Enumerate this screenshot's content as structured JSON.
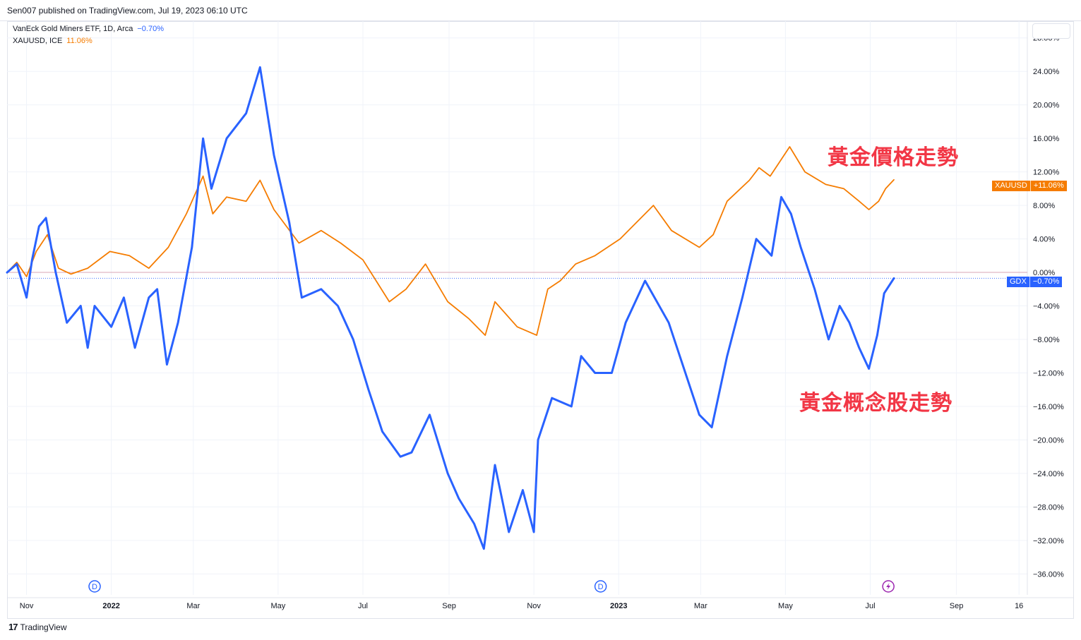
{
  "header": {
    "publisher": "Sen007",
    "published_text": "Sen007 published on TradingView.com, Jul 19, 2023 06:10 UTC"
  },
  "legend": [
    {
      "name": "VanEck Gold Miners ETF, 1D, Arca",
      "value": "−0.70%",
      "color": "#2962ff"
    },
    {
      "name": "XAUUSD, ICE",
      "value": "11.06%",
      "color": "#f57c00"
    }
  ],
  "annotations": {
    "gold_price": "黃金價格走勢",
    "gold_stocks": "黃金概念股走勢"
  },
  "price_tags": {
    "xauusd": {
      "symbol": "XAUUSD",
      "value": "+11.06%",
      "color": "#f57c00"
    },
    "gdx": {
      "symbol": "GDX",
      "value": "−0.70%",
      "color": "#2962ff"
    }
  },
  "footer": {
    "brand": "TradingView",
    "logo_icon": "tradingview-logo-icon"
  },
  "chart_data": {
    "type": "line",
    "title": "",
    "xlabel": "",
    "ylabel": "",
    "x_tick_labels": [
      "Nov",
      "2022",
      "Mar",
      "May",
      "Jul",
      "Sep",
      "Nov",
      "2023",
      "Mar",
      "May",
      "Jul",
      "Sep",
      "16"
    ],
    "x_tick_dates": [
      "2021-11-01",
      "2022-01-01",
      "2022-03-01",
      "2022-05-01",
      "2022-07-01",
      "2022-09-01",
      "2022-11-01",
      "2023-01-01",
      "2023-03-01",
      "2023-05-01",
      "2023-07-01",
      "2023-09-01",
      "2023-10-16"
    ],
    "y_tick_labels": [
      "28.00%",
      "24.00%",
      "20.00%",
      "16.00%",
      "12.00%",
      "8.00%",
      "4.00%",
      "0.00%",
      "−4.00%",
      "−8.00%",
      "−12.00%",
      "−16.00%",
      "−20.00%",
      "−24.00%",
      "−28.00%",
      "−32.00%",
      "−36.00%"
    ],
    "y_ticks": [
      28,
      24,
      20,
      16,
      12,
      8,
      4,
      0,
      -4,
      -8,
      -12,
      -16,
      -20,
      -24,
      -28,
      -32,
      -36
    ],
    "ylim": [
      -38.5,
      30
    ],
    "xlim": [
      "2021-10-18",
      "2023-10-22"
    ],
    "y_unit": "percent change",
    "dividend_markers": [
      {
        "date": "2021-12-20",
        "label": "D"
      },
      {
        "date": "2022-12-19",
        "label": "D"
      }
    ],
    "event_markers": [
      {
        "date": "2023-07-14",
        "icon": "lightning-icon"
      }
    ],
    "series": [
      {
        "name": "VanEck Gold Miners ETF, 1D, Arca",
        "color": "#2962ff",
        "last_value": -0.7,
        "points": [
          [
            "2021-10-18",
            0
          ],
          [
            "2021-10-25",
            1
          ],
          [
            "2021-11-01",
            -3
          ],
          [
            "2021-11-05",
            1.5
          ],
          [
            "2021-11-10",
            5.5
          ],
          [
            "2021-11-15",
            6.5
          ],
          [
            "2021-11-22",
            0
          ],
          [
            "2021-11-30",
            -6
          ],
          [
            "2021-12-10",
            -4
          ],
          [
            "2021-12-15",
            -9
          ],
          [
            "2021-12-20",
            -4
          ],
          [
            "2022-01-01",
            -6.5
          ],
          [
            "2022-01-10",
            -3
          ],
          [
            "2022-01-18",
            -9
          ],
          [
            "2022-01-28",
            -3
          ],
          [
            "2022-02-03",
            -2
          ],
          [
            "2022-02-10",
            -11
          ],
          [
            "2022-02-18",
            -6
          ],
          [
            "2022-02-28",
            3
          ],
          [
            "2022-03-08",
            16
          ],
          [
            "2022-03-14",
            10
          ],
          [
            "2022-03-25",
            16
          ],
          [
            "2022-04-08",
            19
          ],
          [
            "2022-04-18",
            24.5
          ],
          [
            "2022-04-28",
            14
          ],
          [
            "2022-05-09",
            6
          ],
          [
            "2022-05-18",
            -3
          ],
          [
            "2022-06-01",
            -2
          ],
          [
            "2022-06-13",
            -4
          ],
          [
            "2022-06-24",
            -8
          ],
          [
            "2022-07-05",
            -14
          ],
          [
            "2022-07-15",
            -19
          ],
          [
            "2022-07-28",
            -22
          ],
          [
            "2022-08-05",
            -21.5
          ],
          [
            "2022-08-18",
            -17
          ],
          [
            "2022-08-31",
            -24
          ],
          [
            "2022-09-08",
            -27
          ],
          [
            "2022-09-19",
            -30
          ],
          [
            "2022-09-26",
            -33
          ],
          [
            "2022-10-04",
            -23
          ],
          [
            "2022-10-14",
            -31
          ],
          [
            "2022-10-24",
            -26
          ],
          [
            "2022-11-01",
            -31
          ],
          [
            "2022-11-04",
            -20
          ],
          [
            "2022-11-14",
            -15
          ],
          [
            "2022-11-28",
            -16
          ],
          [
            "2022-12-05",
            -10
          ],
          [
            "2022-12-15",
            -12
          ],
          [
            "2022-12-27",
            -12
          ],
          [
            "2023-01-06",
            -6
          ],
          [
            "2023-01-20",
            -1
          ],
          [
            "2023-02-06",
            -6
          ],
          [
            "2023-02-14",
            -10
          ],
          [
            "2023-02-28",
            -17
          ],
          [
            "2023-03-09",
            -18.5
          ],
          [
            "2023-03-20",
            -10
          ],
          [
            "2023-03-31",
            -3
          ],
          [
            "2023-04-10",
            4
          ],
          [
            "2023-04-21",
            2
          ],
          [
            "2023-04-28",
            9
          ],
          [
            "2023-05-05",
            7
          ],
          [
            "2023-05-12",
            3
          ],
          [
            "2023-05-22",
            -2
          ],
          [
            "2023-06-01",
            -8
          ],
          [
            "2023-06-09",
            -4
          ],
          [
            "2023-06-16",
            -6
          ],
          [
            "2023-06-23",
            -9
          ],
          [
            "2023-06-30",
            -11.5
          ],
          [
            "2023-07-06",
            -7.5
          ],
          [
            "2023-07-11",
            -2.5
          ],
          [
            "2023-07-18",
            -0.7
          ]
        ]
      },
      {
        "name": "XAUUSD, ICE",
        "color": "#f57c00",
        "last_value": 11.06,
        "points": [
          [
            "2021-10-18",
            0
          ],
          [
            "2021-10-25",
            1.2
          ],
          [
            "2021-11-01",
            -0.5
          ],
          [
            "2021-11-08",
            2.5
          ],
          [
            "2021-11-16",
            4.5
          ],
          [
            "2021-11-24",
            0.5
          ],
          [
            "2021-12-03",
            -0.2
          ],
          [
            "2021-12-15",
            0.5
          ],
          [
            "2021-12-31",
            2.5
          ],
          [
            "2022-01-14",
            2
          ],
          [
            "2022-01-28",
            0.5
          ],
          [
            "2022-02-11",
            3
          ],
          [
            "2022-02-24",
            7
          ],
          [
            "2022-03-08",
            11.5
          ],
          [
            "2022-03-15",
            7
          ],
          [
            "2022-03-25",
            9
          ],
          [
            "2022-04-08",
            8.5
          ],
          [
            "2022-04-18",
            11
          ],
          [
            "2022-04-28",
            7.5
          ],
          [
            "2022-05-16",
            3.5
          ],
          [
            "2022-06-01",
            5
          ],
          [
            "2022-06-15",
            3.5
          ],
          [
            "2022-07-01",
            1.5
          ],
          [
            "2022-07-20",
            -3.5
          ],
          [
            "2022-08-01",
            -2
          ],
          [
            "2022-08-15",
            1
          ],
          [
            "2022-08-31",
            -3.5
          ],
          [
            "2022-09-15",
            -5.5
          ],
          [
            "2022-09-27",
            -7.5
          ],
          [
            "2022-10-04",
            -3.5
          ],
          [
            "2022-10-20",
            -6.5
          ],
          [
            "2022-11-03",
            -7.5
          ],
          [
            "2022-11-11",
            -2
          ],
          [
            "2022-11-20",
            -1
          ],
          [
            "2022-12-01",
            1
          ],
          [
            "2022-12-15",
            2
          ],
          [
            "2023-01-02",
            4
          ],
          [
            "2023-01-26",
            8
          ],
          [
            "2023-02-08",
            5
          ],
          [
            "2023-02-28",
            3
          ],
          [
            "2023-03-10",
            4.5
          ],
          [
            "2023-03-20",
            8.5
          ],
          [
            "2023-04-05",
            11
          ],
          [
            "2023-04-12",
            12.5
          ],
          [
            "2023-04-20",
            11.5
          ],
          [
            "2023-05-04",
            15
          ],
          [
            "2023-05-15",
            12
          ],
          [
            "2023-05-30",
            10.5
          ],
          [
            "2023-06-12",
            10
          ],
          [
            "2023-06-23",
            8.5
          ],
          [
            "2023-06-30",
            7.5
          ],
          [
            "2023-07-07",
            8.5
          ],
          [
            "2023-07-12",
            10
          ],
          [
            "2023-07-18",
            11.06
          ]
        ]
      }
    ]
  }
}
